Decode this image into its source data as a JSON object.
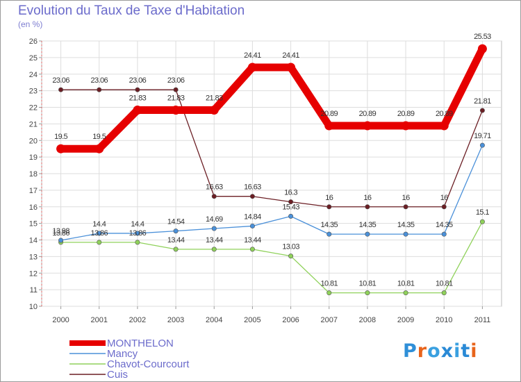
{
  "title": "Evolution du Taux de Taxe d'Habitation",
  "subtitle": "(en %)",
  "logo": {
    "text": "Proxiti",
    "colors": [
      "#2f8fd8",
      "#e8641b",
      "#3aa0e0",
      "#2a8ad6",
      "#3aa0e0",
      "#2a8ad6",
      "#e8641b"
    ]
  },
  "chart_data": {
    "type": "line",
    "x": [
      "2000",
      "2001",
      "2002",
      "2003",
      "2004",
      "2005",
      "2006",
      "2007",
      "2008",
      "2009",
      "2010",
      "2011"
    ],
    "ylim": [
      10,
      26
    ],
    "yticks": [
      10,
      11,
      12,
      13,
      14,
      15,
      16,
      17,
      18,
      19,
      20,
      21,
      22,
      23,
      24,
      25,
      26
    ],
    "grid": true,
    "legend_position": "bottom-left",
    "series": [
      {
        "name": "MONTHELON",
        "color": "#e60000",
        "values": [
          19.5,
          19.5,
          21.83,
          21.83,
          21.83,
          24.41,
          24.41,
          20.89,
          20.89,
          20.89,
          20.89,
          25.53
        ],
        "labels": [
          "19.5",
          "19.5",
          "21.83",
          "21.83",
          "21.83",
          "24.41",
          "24.41",
          "20.89",
          "20.89",
          "20.89",
          "20.89",
          "25.53"
        ]
      },
      {
        "name": "Mancy",
        "color": "#4a90d9",
        "values": [
          13.98,
          14.4,
          14.4,
          14.54,
          14.69,
          14.84,
          15.43,
          14.35,
          14.35,
          14.35,
          14.35,
          19.71
        ],
        "labels": [
          "13.98",
          "14.4",
          "14.4",
          "14.54",
          "14.69",
          "14.84",
          "15.43",
          "14.35",
          "14.35",
          "14.35",
          "14.35",
          "19.71"
        ]
      },
      {
        "name": "Chavot-Courcourt",
        "color": "#8fd15a",
        "values": [
          13.86,
          13.86,
          13.86,
          13.44,
          13.44,
          13.44,
          13.03,
          10.81,
          10.81,
          10.81,
          10.81,
          15.1
        ],
        "labels": [
          "13.86",
          "13.86",
          "13.86",
          "13.44",
          "13.44",
          "13.44",
          "13.03",
          "10.81",
          "10.81",
          "10.81",
          "10.81",
          "15.1"
        ]
      },
      {
        "name": "Cuis",
        "color": "#6b1e24",
        "values": [
          23.06,
          23.06,
          23.06,
          23.06,
          16.63,
          16.63,
          16.3,
          16,
          16,
          16,
          16,
          21.81
        ],
        "labels": [
          "23.06",
          "23.06",
          "23.06",
          "23.06",
          "16.63",
          "16.63",
          "16.3",
          "16",
          "16",
          "16",
          "16",
          "21.81"
        ]
      }
    ]
  }
}
